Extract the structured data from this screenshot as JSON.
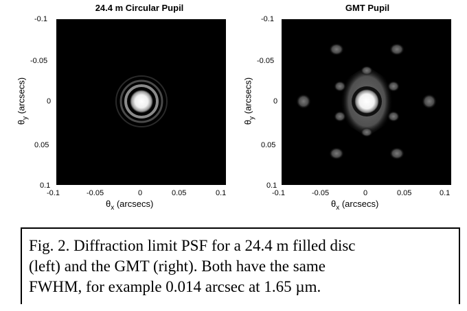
{
  "left_panel": {
    "title": "24.4 m Circular Pupil",
    "y_ticks": [
      "-0.1",
      "-0.05",
      "0",
      "0.05",
      "0.1"
    ],
    "x_ticks": [
      "-0.1",
      "-0.05",
      "0",
      "0.05",
      "0.1"
    ],
    "ylabel_main": "θ",
    "ylabel_sub": "y",
    "ylabel_rest": " (arcsecs)",
    "xlabel_main": "θ",
    "xlabel_sub": "x",
    "xlabel_rest": " (arcsecs)"
  },
  "right_panel": {
    "title": "GMT Pupil",
    "y_ticks": [
      "-0.1",
      "-0.05",
      "0",
      "0.05",
      "0.1"
    ],
    "x_ticks": [
      "-0.1",
      "-0.05",
      "0",
      "0.05",
      "0.1"
    ],
    "ylabel_main": "θ",
    "ylabel_sub": "y",
    "ylabel_rest": " (arcsecs)",
    "xlabel_main": "θ",
    "xlabel_sub": "x",
    "xlabel_rest": " (arcsecs)"
  },
  "caption": {
    "line1": "Fig. 2.  Diffraction limit PSF for a 24.4 m filled disc",
    "line2": "(left) and the GMT (right).  Both have the same",
    "line3": "FWHM, for example 0.014 arcsec at 1.65 µm."
  }
}
